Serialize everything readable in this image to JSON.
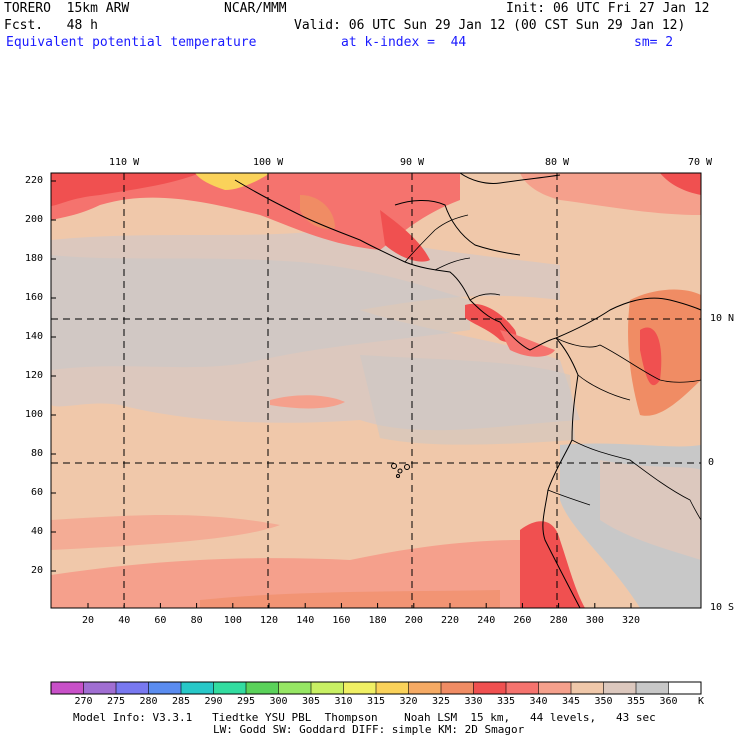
{
  "header": {
    "model": "TORERO  15km ARW",
    "center": "NCAR/MMM",
    "init": "Init: 06 UTC Fri 27 Jan 12",
    "fcst": "Fcst.   48 h",
    "valid": "Valid: 06 UTC Sun 29 Jan 12 (00 CST Sun 29 Jan 12)",
    "field": "Equivalent potential temperature",
    "level": "at k-index =  44",
    "smooth": "sm= 2"
  },
  "map": {
    "lon_labels": [
      "110 W",
      "100 W",
      "90 W",
      "80 W",
      "70 W"
    ],
    "lat_labels": [
      "10 N",
      "0",
      "10 S"
    ],
    "y_ticks": [
      "220",
      "200",
      "180",
      "160",
      "140",
      "120",
      "100",
      "80",
      "60",
      "40",
      "20"
    ],
    "x_ticks": [
      "20",
      "40",
      "60",
      "80",
      "100",
      "120",
      "140",
      "160",
      "180",
      "200",
      "220",
      "240",
      "260",
      "280",
      "300",
      "320"
    ]
  },
  "colorbar": {
    "labels": [
      "270",
      "275",
      "280",
      "285",
      "290",
      "295",
      "300",
      "305",
      "310",
      "315",
      "320",
      "325",
      "330",
      "335",
      "340",
      "345",
      "350",
      "355",
      "360"
    ],
    "unit": "K",
    "colors": [
      "#c850c8",
      "#a06ed2",
      "#7878f0",
      "#5a8cf0",
      "#28c8c8",
      "#32dca0",
      "#5ad25a",
      "#96e664",
      "#c8f064",
      "#f0f064",
      "#fad25a",
      "#f5aa64",
      "#f08c64",
      "#f05050",
      "#f5736e",
      "#f5a08c",
      "#f0c8aa",
      "#dcc8be",
      "#c8c8c8",
      "#ffffff"
    ]
  },
  "footer": {
    "line1": "Model Info: V3.3.1   Tiedtke YSU PBL  Thompson    Noah LSM  15 km,   44 levels,   43 sec",
    "line2": "LW: Godd SW: Goddard DIFF: simple KM: 2D Smagor"
  }
}
